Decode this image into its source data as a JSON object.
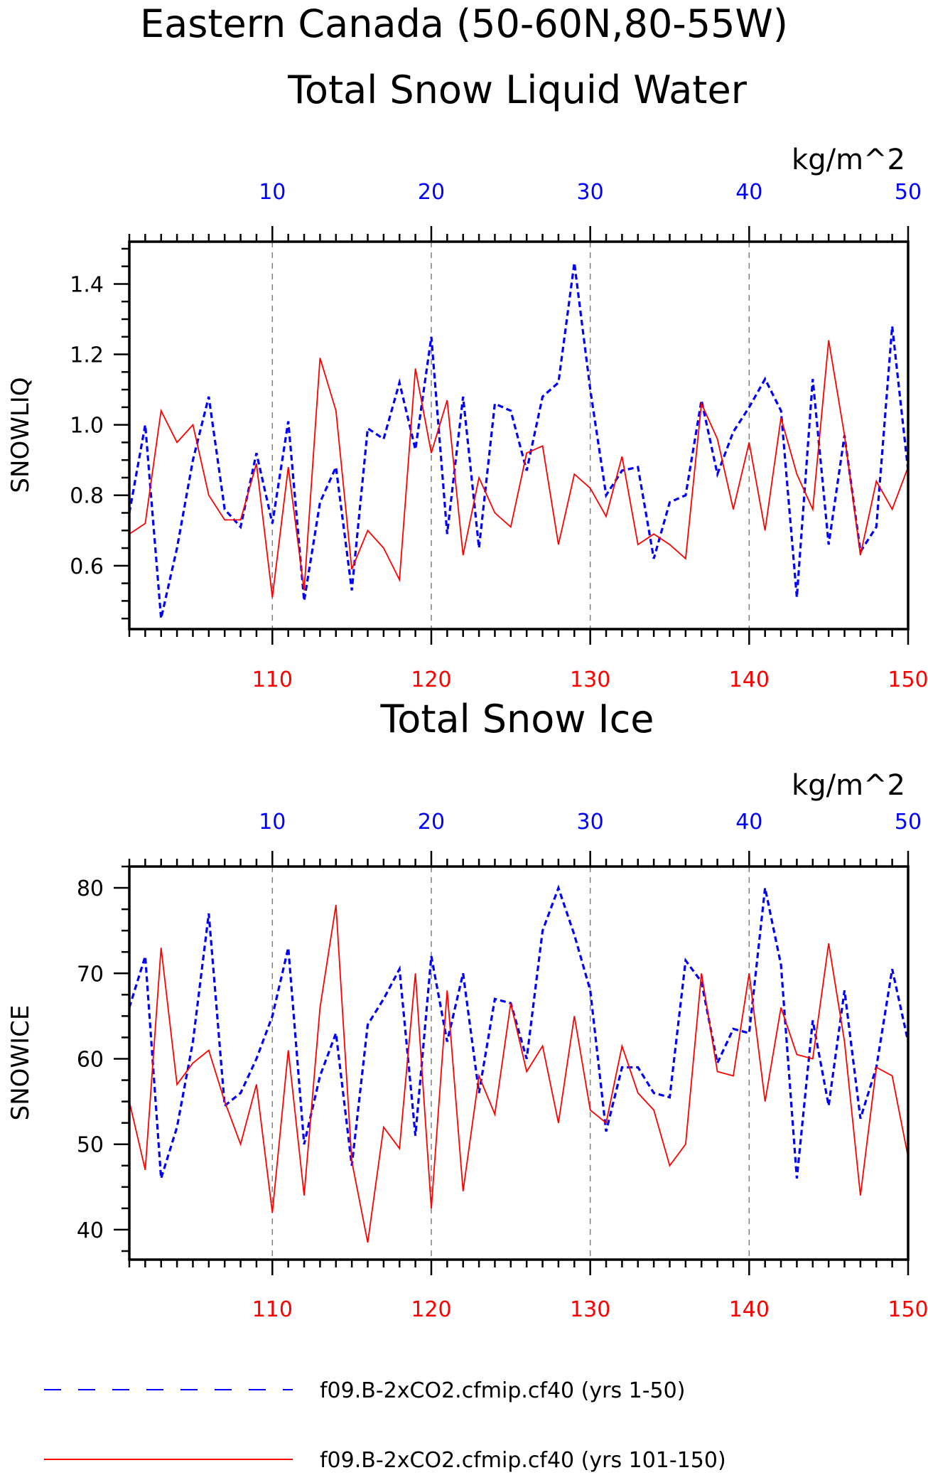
{
  "figure": {
    "title_line1": "Eastern Canada (50-60N,80-55W)",
    "title_line2": "Total Snow Liquid Water",
    "colors": {
      "series_a": "#0000ff",
      "series_b": "#ff0000",
      "axis": "#000000",
      "gridline": "#7f7f7f"
    }
  },
  "legend": [
    {
      "label": "f09.B-2xCO2.cfmip.cf40 (yrs 1-50)",
      "style": "dashed",
      "color": "#0000ff"
    },
    {
      "label": "f09.B-2xCO2.cfmip.cf40 (yrs 101-150)",
      "style": "solid",
      "color": "#ff0000"
    }
  ],
  "chart_data": [
    {
      "type": "line",
      "title": "",
      "ylabel": "SNOWLIQ",
      "units": "kg/m^2",
      "ylim": [
        0.42,
        1.52
      ],
      "yticks": [
        0.6,
        0.8,
        1.0,
        1.2,
        1.4
      ],
      "ytick_labels": [
        "0.6",
        "0.8",
        "1.0",
        "1.2",
        "1.4"
      ],
      "top_axis": {
        "range": [
          1,
          50
        ],
        "ticks": [
          10,
          20,
          30,
          40,
          50
        ],
        "color": "#0000ff"
      },
      "bottom_axis": {
        "range": [
          101,
          150
        ],
        "ticks": [
          110,
          120,
          130,
          140,
          150
        ],
        "color": "#ff0000"
      },
      "grid": "vertical dashed at labeled ticks",
      "series": [
        {
          "x_axis": "top",
          "color": "#0000ff",
          "dash": "dashed",
          "x": [
            1,
            2,
            3,
            4,
            5,
            6,
            7,
            8,
            9,
            10,
            11,
            12,
            13,
            14,
            15,
            16,
            17,
            18,
            19,
            20,
            21,
            22,
            23,
            24,
            25,
            26,
            27,
            28,
            29,
            30,
            31,
            32,
            33,
            34,
            35,
            36,
            37,
            38,
            39,
            40,
            41,
            42,
            43,
            44,
            45,
            46,
            47,
            48,
            49,
            50
          ],
          "values": [
            0.75,
            1.0,
            0.45,
            0.65,
            0.9,
            1.08,
            0.76,
            0.71,
            0.92,
            0.72,
            1.01,
            0.5,
            0.78,
            0.88,
            0.53,
            0.99,
            0.96,
            1.12,
            0.93,
            1.25,
            0.69,
            1.08,
            0.65,
            1.06,
            1.04,
            0.87,
            1.08,
            1.12,
            1.46,
            1.1,
            0.8,
            0.87,
            0.88,
            0.62,
            0.78,
            0.8,
            1.07,
            0.86,
            0.98,
            1.05,
            1.13,
            1.04,
            0.51,
            1.13,
            0.66,
            0.97,
            0.64,
            0.71,
            1.28,
            0.87
          ]
        },
        {
          "x_axis": "bottom",
          "color": "#ff0000",
          "dash": "solid",
          "x": [
            101,
            102,
            103,
            104,
            105,
            106,
            107,
            108,
            109,
            110,
            111,
            112,
            113,
            114,
            115,
            116,
            117,
            118,
            119,
            120,
            121,
            122,
            123,
            124,
            125,
            126,
            127,
            128,
            129,
            130,
            131,
            132,
            133,
            134,
            135,
            136,
            137,
            138,
            139,
            140,
            141,
            142,
            143,
            144,
            145,
            146,
            147,
            148,
            149,
            150
          ],
          "values": [
            0.69,
            0.72,
            1.04,
            0.95,
            1.0,
            0.8,
            0.73,
            0.73,
            0.89,
            0.51,
            0.88,
            0.53,
            1.19,
            1.04,
            0.59,
            0.7,
            0.65,
            0.56,
            1.16,
            0.92,
            1.07,
            0.63,
            0.85,
            0.75,
            0.71,
            0.92,
            0.94,
            0.66,
            0.86,
            0.82,
            0.74,
            0.91,
            0.66,
            0.69,
            0.66,
            0.62,
            1.06,
            0.96,
            0.76,
            0.95,
            0.7,
            1.02,
            0.86,
            0.76,
            1.24,
            0.97,
            0.63,
            0.84,
            0.76,
            0.88
          ]
        }
      ]
    },
    {
      "type": "line",
      "title": "Total Snow Ice",
      "ylabel": "SNOWICE",
      "units": "kg/m^2",
      "ylim": [
        36.5,
        82.5
      ],
      "yticks": [
        40,
        50,
        60,
        70,
        80
      ],
      "ytick_labels": [
        "40",
        "50",
        "60",
        "70",
        "80"
      ],
      "top_axis": {
        "range": [
          1,
          50
        ],
        "ticks": [
          10,
          20,
          30,
          40,
          50
        ],
        "color": "#0000ff"
      },
      "bottom_axis": {
        "range": [
          101,
          150
        ],
        "ticks": [
          110,
          120,
          130,
          140,
          150
        ],
        "color": "#ff0000"
      },
      "grid": "vertical dashed at labeled ticks",
      "series": [
        {
          "x_axis": "top",
          "color": "#0000ff",
          "dash": "dashed",
          "x": [
            1,
            2,
            3,
            4,
            5,
            6,
            7,
            8,
            9,
            10,
            11,
            12,
            13,
            14,
            15,
            16,
            17,
            18,
            19,
            20,
            21,
            22,
            23,
            24,
            25,
            26,
            27,
            28,
            29,
            30,
            31,
            32,
            33,
            34,
            35,
            36,
            37,
            38,
            39,
            40,
            41,
            42,
            43,
            44,
            45,
            46,
            47,
            48,
            49,
            50
          ],
          "values": [
            66,
            72,
            46,
            52,
            62,
            77,
            54.5,
            56,
            60,
            65,
            73,
            50,
            58,
            63,
            47.5,
            64,
            67,
            70.5,
            51,
            72,
            62,
            70,
            56,
            67,
            66.5,
            60,
            75,
            80,
            74.5,
            68,
            51.5,
            59,
            59,
            56,
            55.5,
            71.5,
            69,
            59.5,
            63.5,
            63,
            80,
            71,
            46,
            64.5,
            54.5,
            68,
            53,
            59,
            70.5,
            62
          ]
        },
        {
          "x_axis": "bottom",
          "color": "#ff0000",
          "dash": "solid",
          "x": [
            101,
            102,
            103,
            104,
            105,
            106,
            107,
            108,
            109,
            110,
            111,
            112,
            113,
            114,
            115,
            116,
            117,
            118,
            119,
            120,
            121,
            122,
            123,
            124,
            125,
            126,
            127,
            128,
            129,
            130,
            131,
            132,
            133,
            134,
            135,
            136,
            137,
            138,
            139,
            140,
            141,
            142,
            143,
            144,
            145,
            146,
            147,
            148,
            149,
            150
          ],
          "values": [
            55,
            47,
            73,
            57,
            59.5,
            61,
            55,
            50,
            57,
            42,
            61,
            44,
            66,
            78,
            48,
            38.5,
            52,
            49.5,
            70,
            42.5,
            68,
            44.5,
            58,
            53.5,
            66.5,
            58.5,
            61.5,
            52.5,
            65,
            54,
            52.5,
            61.5,
            56,
            54,
            47.5,
            50,
            70,
            58.5,
            58,
            70,
            55,
            66,
            60.5,
            60,
            73.5,
            62,
            44,
            59,
            58,
            48.5
          ]
        }
      ]
    }
  ]
}
